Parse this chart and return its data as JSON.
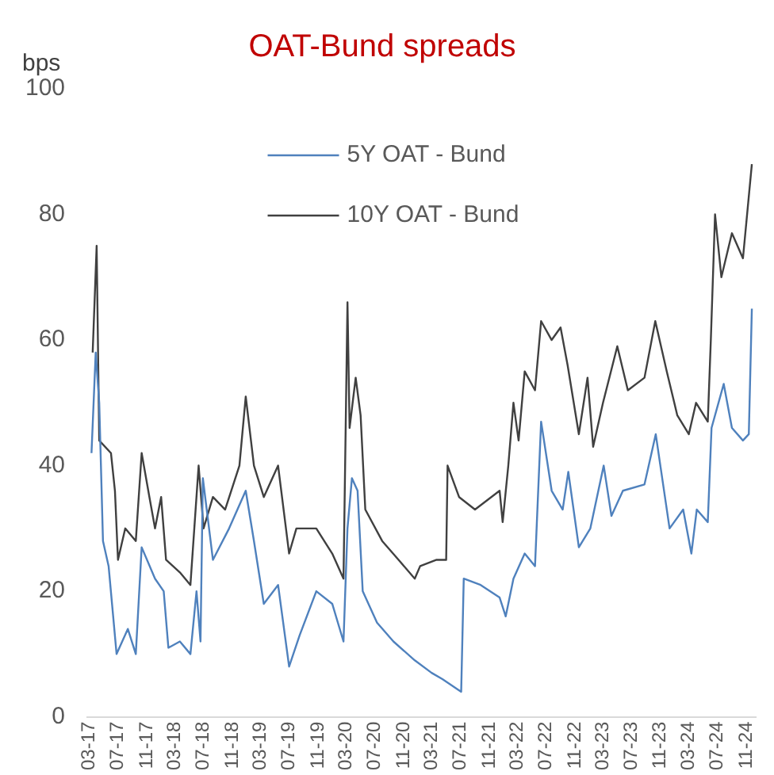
{
  "chart_data": {
    "type": "line",
    "title": "OAT-Bund spreads",
    "ylabel": "bps",
    "xlim": [
      "2017-02-20",
      "2024-12-10"
    ],
    "xticks": [
      {
        "value": "2017-03-01",
        "label": "03-17"
      },
      {
        "value": "2017-07-01",
        "label": "07-17"
      },
      {
        "value": "2017-11-01",
        "label": "11-17"
      },
      {
        "value": "2018-03-01",
        "label": "03-18"
      },
      {
        "value": "2018-07-01",
        "label": "07-18"
      },
      {
        "value": "2018-11-01",
        "label": "11-18"
      },
      {
        "value": "2019-03-01",
        "label": "03-19"
      },
      {
        "value": "2019-07-01",
        "label": "07-19"
      },
      {
        "value": "2019-11-01",
        "label": "11-19"
      },
      {
        "value": "2020-03-01",
        "label": "03-20"
      },
      {
        "value": "2020-07-01",
        "label": "07-20"
      },
      {
        "value": "2020-11-01",
        "label": "11-20"
      },
      {
        "value": "2021-03-01",
        "label": "03-21"
      },
      {
        "value": "2021-07-01",
        "label": "07-21"
      },
      {
        "value": "2021-11-01",
        "label": "11-21"
      },
      {
        "value": "2022-03-01",
        "label": "03-22"
      },
      {
        "value": "2022-07-01",
        "label": "07-22"
      },
      {
        "value": "2022-11-01",
        "label": "11-22"
      },
      {
        "value": "2023-03-01",
        "label": "03-23"
      },
      {
        "value": "2023-07-01",
        "label": "07-23"
      },
      {
        "value": "2023-11-01",
        "label": "11-23"
      },
      {
        "value": "2024-03-01",
        "label": "03-24"
      },
      {
        "value": "2024-07-01",
        "label": "07-24"
      },
      {
        "value": "2024-11-01",
        "label": "11-24"
      }
    ],
    "ylim": [
      0,
      100
    ],
    "yticks": [
      0,
      20,
      40,
      60,
      80,
      100
    ],
    "grid": false,
    "legend": "top",
    "marker": "none",
    "line_style": "solid",
    "series": [
      {
        "name": "5Y OAT - Bund",
        "color": "#4f81bd",
        "x": [
          "2017-03-10",
          "2017-03-28",
          "2017-04-12",
          "2017-04-28",
          "2017-05-22",
          "2017-06-25",
          "2017-08-12",
          "2017-09-15",
          "2017-10-10",
          "2017-12-06",
          "2018-01-12",
          "2018-02-01",
          "2018-03-22",
          "2018-05-06",
          "2018-06-01",
          "2018-06-18",
          "2018-06-28",
          "2018-08-10",
          "2018-10-18",
          "2018-12-28",
          "2019-02-01",
          "2019-03-15",
          "2019-05-15",
          "2019-07-01",
          "2019-08-15",
          "2019-10-25",
          "2020-01-01",
          "2020-02-18",
          "2020-03-06",
          "2020-03-25",
          "2020-04-18",
          "2020-05-10",
          "2020-07-10",
          "2020-09-18",
          "2020-12-18",
          "2021-02-28",
          "2021-04-15",
          "2021-07-04",
          "2021-07-15",
          "2021-09-25",
          "2021-12-15",
          "2022-01-10",
          "2022-02-12",
          "2022-04-01",
          "2022-05-15",
          "2022-06-10",
          "2022-07-25",
          "2022-09-10",
          "2022-10-04",
          "2022-11-18",
          "2023-01-06",
          "2023-03-04",
          "2023-04-06",
          "2023-05-25",
          "2023-08-25",
          "2023-10-12",
          "2023-12-10",
          "2024-02-06",
          "2024-03-12",
          "2024-04-04",
          "2024-05-21",
          "2024-06-06",
          "2024-07-28",
          "2024-09-01",
          "2024-10-18",
          "2024-11-12",
          "2024-11-25"
        ],
        "values": [
          42,
          58,
          50,
          28,
          24,
          10,
          14,
          10,
          27,
          22,
          20,
          11,
          12,
          10,
          20,
          12,
          38,
          25,
          30,
          36,
          28,
          18,
          21,
          8,
          13,
          20,
          18,
          12,
          30,
          38,
          36,
          20,
          15,
          12,
          9,
          7,
          6,
          4,
          22,
          21,
          19,
          16,
          22,
          26,
          24,
          47,
          36,
          33,
          39,
          27,
          30,
          40,
          32,
          36,
          37,
          45,
          30,
          33,
          26,
          33,
          31,
          46,
          53,
          46,
          44,
          45,
          65
        ]
      },
      {
        "name": "10Y OAT - Bund",
        "color": "#404040",
        "x": [
          "2017-03-15",
          "2017-04-01",
          "2017-04-12",
          "2017-06-01",
          "2017-06-18",
          "2017-07-01",
          "2017-08-01",
          "2017-09-15",
          "2017-10-10",
          "2017-11-12",
          "2017-12-06",
          "2018-01-01",
          "2018-01-22",
          "2018-03-22",
          "2018-05-06",
          "2018-06-10",
          "2018-07-01",
          "2018-08-10",
          "2018-10-01",
          "2018-12-01",
          "2018-12-28",
          "2019-02-01",
          "2019-03-15",
          "2019-05-15",
          "2019-07-01",
          "2019-08-01",
          "2019-10-25",
          "2020-01-01",
          "2020-02-18",
          "2020-03-06",
          "2020-03-15",
          "2020-04-10",
          "2020-05-01",
          "2020-05-21",
          "2020-08-01",
          "2020-10-10",
          "2020-12-18",
          "2021-01-10",
          "2021-03-21",
          "2021-05-01",
          "2021-05-07",
          "2021-06-25",
          "2021-09-01",
          "2021-12-15",
          "2021-12-28",
          "2022-01-21",
          "2022-02-12",
          "2022-03-06",
          "2022-04-01",
          "2022-05-15",
          "2022-06-10",
          "2022-07-25",
          "2022-09-01",
          "2022-10-01",
          "2022-11-18",
          "2022-12-25",
          "2023-01-18",
          "2023-03-01",
          "2023-05-01",
          "2023-06-15",
          "2023-08-25",
          "2023-10-10",
          "2023-11-28",
          "2024-01-12",
          "2024-03-01",
          "2024-04-01",
          "2024-05-21",
          "2024-06-03",
          "2024-06-21",
          "2024-07-18",
          "2024-09-01",
          "2024-10-18",
          "2024-11-25"
        ],
        "values": [
          58,
          75,
          44,
          42,
          36,
          25,
          30,
          28,
          42,
          35,
          30,
          35,
          25,
          23,
          21,
          40,
          30,
          35,
          33,
          40,
          51,
          40,
          35,
          40,
          26,
          30,
          30,
          26,
          22,
          66,
          46,
          54,
          48,
          33,
          28,
          25,
          22,
          24,
          25,
          25,
          40,
          35,
          33,
          36,
          31,
          40,
          50,
          44,
          55,
          52,
          63,
          60,
          62,
          56,
          45,
          54,
          43,
          50,
          59,
          52,
          54,
          63,
          55,
          48,
          45,
          50,
          47,
          60,
          80,
          70,
          77,
          73,
          88
        ]
      }
    ]
  }
}
